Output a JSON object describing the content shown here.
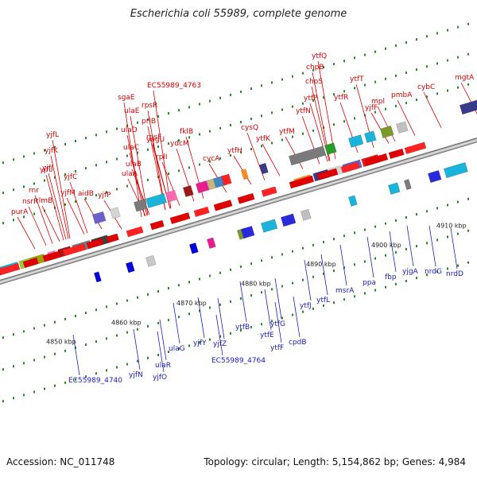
{
  "title": "Escherichia coli 55989, complete genome",
  "footer": {
    "accession": "Accession: NC_011748",
    "summary": "Topology: circular; Length: 5,154,862 bp; Genes: 4,984"
  },
  "colors": {
    "forward_label": "#d40000",
    "reverse_label": "#1a1ab8",
    "backbone": "#888888"
  },
  "kbp_marks": [
    {
      "label": "4850 kbp",
      "pos": 4850
    },
    {
      "label": "4860 kbp",
      "pos": 4860
    },
    {
      "label": "4870 kbp",
      "pos": 4870
    },
    {
      "label": "4880 kbp",
      "pos": 4880
    },
    {
      "label": "4890 kbp",
      "pos": 4890
    },
    {
      "label": "4900 kbp",
      "pos": 4900
    },
    {
      "label": "4910 kbp",
      "pos": 4910
    }
  ],
  "forward_genes": [
    "purA",
    "nsrR",
    "rnr",
    "rlmB",
    "yjfI",
    "yjfJ",
    "yjfK",
    "yjfL",
    "yjfM",
    "yjfC",
    "aidB",
    "yjfP",
    "ulaA",
    "ulaB",
    "ulaC",
    "ulaD",
    "ulaE",
    "sgaE",
    "rpsF",
    "priB",
    "rpsR",
    "EC55989_4763",
    "rplI",
    "yagU",
    "ydcM",
    "fklB",
    "cycA",
    "ytfH",
    "cysQ",
    "ytfK",
    "ytfM",
    "ytfN",
    "ytfP",
    "chpS",
    "chpB",
    "ytfQ",
    "ytfR",
    "ytfT",
    "yjfF",
    "mpl",
    "pmbA",
    "cybC",
    "mgtA"
  ],
  "reverse_genes": [
    "EC55989_4740",
    "yjfN",
    "yjfO",
    "ulaR",
    "ulaG",
    "yjfY",
    "yjfZ",
    "EC55989_4764",
    "ytfB",
    "ytfE",
    "ytfF",
    "ytfG",
    "cpdB",
    "ytfJ",
    "ytfL",
    "msrA",
    "ppa",
    "fbp",
    "yjgA",
    "nrdG",
    "nrdD"
  ]
}
